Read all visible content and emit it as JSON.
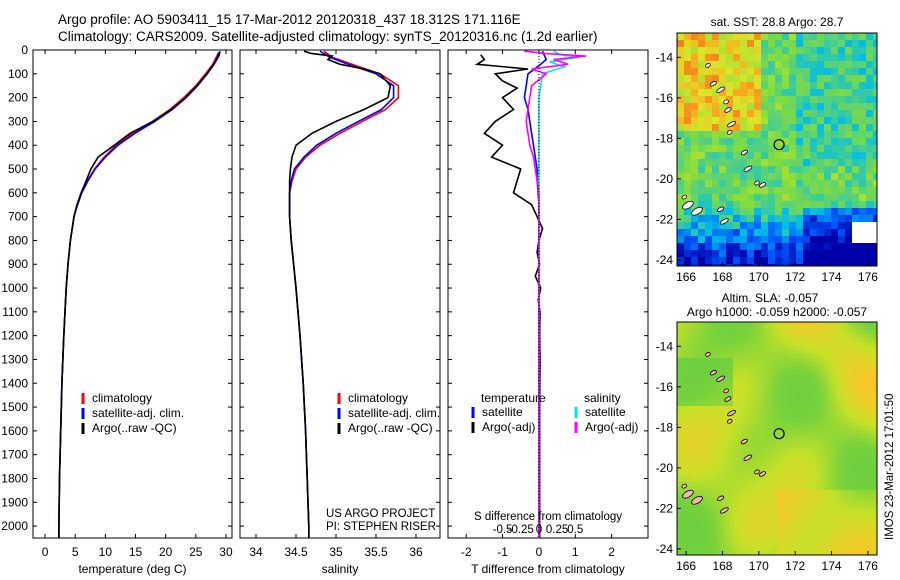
{
  "header": {
    "line1": "Argo profile: AO 5903411_15 17-Mar-2012 20120318_437 18.312S 171.116E",
    "line2": "Climatology: CARS2009. Satellite-adjusted climatology: synTS_20120316.nc (1.2d earlier)"
  },
  "stamp": "IMOS 23-Mar-2012 17:01:50",
  "colors": {
    "climatology": "#ff0000",
    "satellite": "#0000ff",
    "argo": "#000000",
    "salinity_satellite": "#00e5e5",
    "salinity_argo": "#ff00ff"
  },
  "chart_data": [
    {
      "type": "line",
      "id": "temperature",
      "xlabel": "temperature (deg C)",
      "ylabel": "",
      "xlim": [
        -2,
        31
      ],
      "ylim": [
        2050,
        0
      ],
      "xticks": [
        0,
        5,
        10,
        15,
        20,
        25,
        30
      ],
      "xticklabels": [
        "0",
        "5",
        "10",
        "15",
        "20",
        "25",
        "30"
      ],
      "yticks": [
        0,
        100,
        200,
        300,
        400,
        500,
        600,
        700,
        800,
        900,
        1000,
        1100,
        1200,
        1300,
        1400,
        1500,
        1600,
        1700,
        1800,
        1900,
        2000
      ],
      "yticklabels": [
        "0",
        "100",
        "200",
        "300",
        "400",
        "500",
        "600",
        "700",
        "800",
        "900",
        "1000",
        "1100",
        "1200",
        "1300",
        "1400",
        "1500",
        "1600",
        "1700",
        "1800",
        "1900",
        "2000"
      ],
      "legend": [
        "climatology",
        "satellite-adj. clim.",
        "Argo(..raw -QC)"
      ],
      "series": [
        {
          "name": "climatology",
          "color": "#ff0000",
          "depth": [
            10,
            60,
            100,
            150,
            200,
            250,
            300,
            350,
            400,
            450,
            500,
            550,
            600,
            650,
            700,
            800,
            900,
            1000,
            1200,
            1400,
            1600,
            1800,
            2000,
            2050
          ],
          "values": [
            28.8,
            27.8,
            26.6,
            25.0,
            23.0,
            20.7,
            17.8,
            14.5,
            11.8,
            9.8,
            8.2,
            7.0,
            6.0,
            5.3,
            4.8,
            4.2,
            3.8,
            3.5,
            3.1,
            2.8,
            2.6,
            2.4,
            2.3,
            2.3
          ]
        },
        {
          "name": "satellite-adj. clim.",
          "color": "#0000ff",
          "depth": [
            10,
            60,
            100,
            150,
            200,
            250,
            300,
            350,
            400,
            450,
            500,
            550,
            600,
            650,
            700,
            800,
            900,
            1000,
            1200,
            1400,
            1600,
            1800,
            2000,
            2050
          ],
          "values": [
            28.9,
            28.0,
            26.9,
            25.3,
            23.4,
            21.1,
            18.2,
            14.9,
            12.1,
            10.0,
            8.3,
            7.1,
            6.1,
            5.4,
            4.8,
            4.2,
            3.8,
            3.5,
            3.1,
            2.8,
            2.6,
            2.4,
            2.3,
            2.3
          ]
        },
        {
          "name": "Argo(..raw -QC)",
          "color": "#000000",
          "depth": [
            5,
            20,
            40,
            60,
            100,
            150,
            200,
            250,
            300,
            350,
            400,
            450,
            500,
            550,
            600,
            650,
            700,
            800,
            900,
            1000,
            1200,
            1400,
            1600,
            1800,
            2000,
            2050
          ],
          "values": [
            29.0,
            28.9,
            28.5,
            28.0,
            26.8,
            25.2,
            23.3,
            20.9,
            17.9,
            14.1,
            11.5,
            8.8,
            7.6,
            6.8,
            6.0,
            5.3,
            4.8,
            4.2,
            3.8,
            3.5,
            3.1,
            2.8,
            2.6,
            2.4,
            2.3,
            2.3
          ]
        }
      ]
    },
    {
      "type": "line",
      "id": "salinity",
      "xlabel": "salinity",
      "xlim": [
        33.8,
        36.3
      ],
      "ylim": [
        2050,
        0
      ],
      "xticks": [
        34,
        34.5,
        35,
        35.5,
        36
      ],
      "xticklabels": [
        "34",
        "34.5",
        "35",
        "35.5",
        "36"
      ],
      "legend": [
        "climatology",
        "satellite-adj. clim.",
        "Argo(..raw -QC)"
      ],
      "annotation": [
        "US ARGO PROJECT",
        "PI: STEPHEN RISER"
      ],
      "series": [
        {
          "name": "climatology",
          "color": "#ff0000",
          "depth": [
            5,
            30,
            60,
            100,
            150,
            200,
            250,
            300,
            350,
            400,
            450,
            500,
            550,
            600,
            700,
            800,
            900,
            1000,
            1200,
            1400,
            1600,
            1800,
            2000,
            2050
          ],
          "values": [
            34.85,
            34.95,
            35.2,
            35.55,
            35.78,
            35.78,
            35.62,
            35.33,
            35.05,
            34.8,
            34.62,
            34.5,
            34.45,
            34.42,
            34.42,
            34.44,
            34.47,
            34.5,
            34.55,
            34.59,
            34.62,
            34.64,
            34.66,
            34.66
          ]
        },
        {
          "name": "satellite-adj. clim.",
          "color": "#0000ff",
          "depth": [
            5,
            30,
            60,
            100,
            150,
            200,
            250,
            300,
            350,
            400,
            450,
            500,
            550,
            600,
            700,
            800,
            900,
            1000,
            1200,
            1400,
            1600,
            1800,
            2000,
            2050
          ],
          "values": [
            34.8,
            34.92,
            35.15,
            35.5,
            35.72,
            35.72,
            35.57,
            35.28,
            35.0,
            34.76,
            34.6,
            34.48,
            34.44,
            34.42,
            34.42,
            34.44,
            34.47,
            34.5,
            34.55,
            34.59,
            34.62,
            34.64,
            34.66,
            34.66
          ]
        },
        {
          "name": "Argo(..raw -QC)",
          "color": "#000000",
          "depth": [
            5,
            15,
            25,
            40,
            60,
            80,
            100,
            150,
            200,
            250,
            300,
            350,
            400,
            450,
            500,
            550,
            600,
            700,
            800,
            900,
            1000,
            1200,
            1400,
            1600,
            1800,
            2000,
            2050
          ],
          "values": [
            34.6,
            34.7,
            34.95,
            34.9,
            35.05,
            35.35,
            35.55,
            35.68,
            35.65,
            35.35,
            35.0,
            34.7,
            34.5,
            34.45,
            34.43,
            34.42,
            34.42,
            34.42,
            34.44,
            34.47,
            34.5,
            34.55,
            34.59,
            34.62,
            34.64,
            34.66,
            34.66
          ]
        }
      ]
    },
    {
      "type": "line",
      "id": "difference",
      "xlabel": "T difference from climatology",
      "xlabel2": "S difference from climatology",
      "xlim": [
        -2.5,
        3.0
      ],
      "ylim": [
        2050,
        0
      ],
      "xticks": [
        -2,
        -1,
        0,
        1,
        2
      ],
      "xticklabels": [
        "-2",
        "-1",
        "0",
        "1",
        "2"
      ],
      "s_xticks": [
        -1,
        -0.5,
        0,
        0.5,
        1
      ],
      "s_xticklabels": [
        "-0.5",
        "-0.25",
        "0",
        "0.25",
        "0.5"
      ],
      "legend_t_title": "temperature",
      "legend_s_title": "salinity",
      "legend": [
        "satellite",
        "Argo(-adj)",
        "satellite",
        "Argo(-adj)"
      ],
      "series": [
        {
          "name": "T satellite",
          "color": "#0000ff",
          "depth": [
            5,
            40,
            60,
            100,
            150,
            200,
            250,
            300,
            350,
            400,
            450,
            500,
            550,
            600,
            650,
            700,
            800,
            1000,
            1500,
            2050
          ],
          "values": [
            0.1,
            0.2,
            0.05,
            -0.3,
            -0.35,
            -0.4,
            -0.3,
            -0.25,
            -0.2,
            -0.15,
            -0.1,
            -0.05,
            -0.05,
            -0.02,
            0,
            0,
            0,
            0,
            0,
            0
          ]
        },
        {
          "name": "T Argo(-adj)",
          "color": "#000000",
          "depth": [
            20,
            40,
            60,
            80,
            100,
            130,
            160,
            200,
            250,
            300,
            350,
            400,
            450,
            500,
            550,
            600,
            650,
            700,
            750,
            800,
            850,
            900,
            950,
            1000,
            1050,
            1100,
            1200,
            1300,
            1500,
            1700,
            2050
          ],
          "values": [
            -1.6,
            -1.5,
            -1.7,
            -0.3,
            -1.2,
            -1.0,
            -0.6,
            -1.0,
            -0.7,
            -1.2,
            -1.5,
            -1.0,
            -1.3,
            -0.5,
            -0.6,
            -0.7,
            -0.2,
            -0.05,
            0.1,
            0.0,
            -0.05,
            0.02,
            -0.1,
            0.05,
            -0.02,
            0.03,
            0.02,
            0.03,
            0.02,
            0.02,
            0.02
          ]
        },
        {
          "name": "S satellite",
          "color": "#00e5e5",
          "depth": [
            5,
            20,
            30,
            50,
            70,
            100,
            150,
            200,
            300,
            400,
            600,
            1000,
            1500,
            2050
          ],
          "values": [
            0.4,
            0.6,
            1.1,
            0.3,
            0.7,
            0.1,
            0.05,
            0.0,
            0.0,
            0.0,
            0.0,
            0.0,
            0.0,
            0.0
          ]
        },
        {
          "name": "S Argo(-adj)",
          "color": "#ff00ff",
          "depth": [
            5,
            15,
            25,
            40,
            60,
            80,
            100,
            150,
            200,
            250,
            300,
            350,
            400,
            450,
            500,
            550,
            600,
            700,
            800,
            1000,
            1500,
            2050
          ],
          "values": [
            -0.4,
            0.2,
            1.3,
            0.4,
            0.8,
            -0.2,
            0.2,
            -0.2,
            -0.25,
            -0.3,
            -0.35,
            -0.3,
            -0.25,
            -0.15,
            -0.1,
            -0.05,
            0,
            0,
            0,
            0,
            0,
            0
          ]
        }
      ]
    },
    {
      "type": "heatmap",
      "id": "sst_map",
      "title": "sat. SST: 28.8 Argo: 28.7",
      "xlim": [
        165.5,
        176.5
      ],
      "ylim": [
        -24.3,
        -12.8
      ],
      "xticks": [
        166,
        168,
        170,
        172,
        174,
        176
      ],
      "xticklabels": [
        "166",
        "168",
        "170",
        "172",
        "174",
        "176"
      ],
      "yticks": [
        -14,
        -16,
        -18,
        -20,
        -22,
        -24
      ],
      "yticklabels": [
        "-14",
        "-16",
        "-18",
        "-20",
        "-22",
        "-24"
      ],
      "marker": {
        "lon": 171.116,
        "lat": -18.312
      }
    },
    {
      "type": "heatmap",
      "id": "sla_map",
      "title": "Altim. SLA: -0.057",
      "subtitle": "Argo h1000: -0.059 h2000: -0.057",
      "xlim": [
        165.5,
        176.5
      ],
      "ylim": [
        -24.3,
        -12.8
      ],
      "xticks": [
        166,
        168,
        170,
        172,
        174,
        176
      ],
      "xticklabels": [
        "166",
        "168",
        "170",
        "172",
        "174",
        "176"
      ],
      "yticks": [
        -14,
        -16,
        -18,
        -20,
        -22,
        -24
      ],
      "yticklabels": [
        "-14",
        "-16",
        "-18",
        "-20",
        "-22",
        "-24"
      ],
      "marker": {
        "lon": 171.116,
        "lat": -18.312
      }
    }
  ]
}
